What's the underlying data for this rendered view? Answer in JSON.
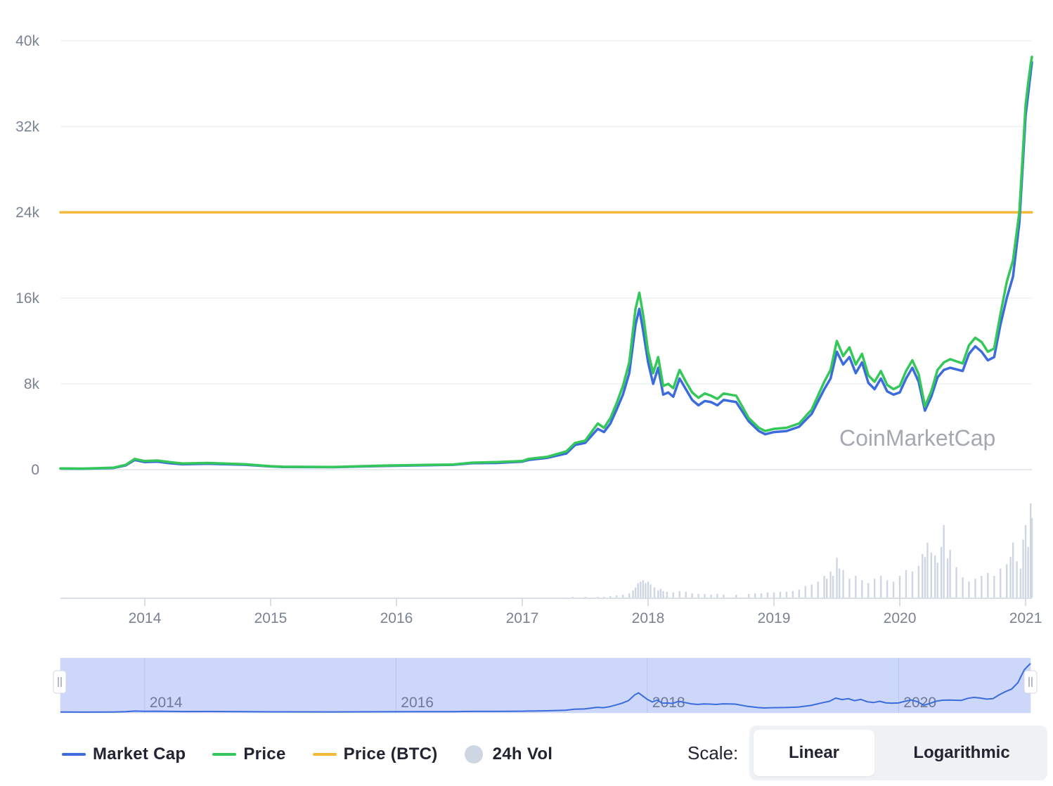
{
  "chart_data": {
    "type": "line",
    "y_axis": {
      "ticks": [
        "0",
        "8k",
        "16k",
        "24k",
        "32k",
        "40k"
      ],
      "tick_values": [
        0,
        8000,
        16000,
        24000,
        32000,
        40000
      ],
      "ylim": [
        0,
        40000
      ],
      "grid": true
    },
    "x_axis": {
      "ticks": [
        "2014",
        "2015",
        "2016",
        "2017",
        "2018",
        "2019",
        "2020",
        "2021"
      ],
      "xlim": [
        2013.33,
        2021.05
      ]
    },
    "series": [
      {
        "name": "Market Cap",
        "color": "#3b6bdc",
        "x": [
          2013.33,
          2013.5,
          2013.75,
          2013.85,
          2013.92,
          2014.0,
          2014.1,
          2014.2,
          2014.3,
          2014.5,
          2014.8,
          2015.0,
          2015.1,
          2015.5,
          2015.9,
          2016.2,
          2016.45,
          2016.6,
          2016.8,
          2017.0,
          2017.05,
          2017.2,
          2017.35,
          2017.42,
          2017.5,
          2017.6,
          2017.65,
          2017.7,
          2017.75,
          2017.8,
          2017.85,
          2017.9,
          2017.93,
          2017.96,
          2018.0,
          2018.04,
          2018.08,
          2018.12,
          2018.16,
          2018.2,
          2018.25,
          2018.3,
          2018.35,
          2018.4,
          2018.45,
          2018.5,
          2018.55,
          2018.6,
          2018.65,
          2018.7,
          2018.8,
          2018.88,
          2018.93,
          2019.0,
          2019.1,
          2019.2,
          2019.3,
          2019.4,
          2019.45,
          2019.5,
          2019.55,
          2019.6,
          2019.65,
          2019.7,
          2019.75,
          2019.8,
          2019.85,
          2019.9,
          2019.95,
          2020.0,
          2020.05,
          2020.1,
          2020.15,
          2020.2,
          2020.25,
          2020.3,
          2020.35,
          2020.4,
          2020.5,
          2020.55,
          2020.6,
          2020.65,
          2020.7,
          2020.75,
          2020.8,
          2020.85,
          2020.9,
          2020.95,
          2020.98,
          2021.0,
          2021.02,
          2021.04,
          2021.05
        ],
        "values": [
          100,
          80,
          150,
          400,
          900,
          700,
          750,
          600,
          500,
          550,
          450,
          300,
          250,
          230,
          350,
          400,
          450,
          600,
          620,
          750,
          900,
          1100,
          1500,
          2300,
          2500,
          3800,
          3500,
          4300,
          5600,
          7000,
          9000,
          13500,
          15000,
          13000,
          10000,
          8000,
          9500,
          7000,
          7200,
          6800,
          8500,
          7500,
          6500,
          6000,
          6400,
          6300,
          6000,
          6500,
          6400,
          6300,
          4500,
          3600,
          3300,
          3500,
          3600,
          4000,
          5200,
          7500,
          8500,
          11000,
          9800,
          10500,
          9000,
          10000,
          8100,
          7500,
          8500,
          7300,
          7000,
          7200,
          8500,
          9500,
          8200,
          5500,
          6800,
          8600,
          9300,
          9500,
          9200,
          10800,
          11500,
          11000,
          10200,
          10500,
          13500,
          16000,
          18000,
          23000,
          29000,
          33000,
          35000,
          37000,
          38000
        ]
      },
      {
        "name": "Price",
        "color": "#34c759",
        "x": [
          2013.33,
          2013.5,
          2013.75,
          2013.85,
          2013.92,
          2014.0,
          2014.1,
          2014.2,
          2014.3,
          2014.5,
          2014.8,
          2015.0,
          2015.1,
          2015.5,
          2015.9,
          2016.2,
          2016.45,
          2016.6,
          2016.8,
          2017.0,
          2017.05,
          2017.2,
          2017.35,
          2017.42,
          2017.5,
          2017.6,
          2017.65,
          2017.7,
          2017.75,
          2017.8,
          2017.85,
          2017.9,
          2017.93,
          2017.96,
          2018.0,
          2018.04,
          2018.08,
          2018.12,
          2018.16,
          2018.2,
          2018.25,
          2018.3,
          2018.35,
          2018.4,
          2018.45,
          2018.5,
          2018.55,
          2018.6,
          2018.65,
          2018.7,
          2018.8,
          2018.88,
          2018.93,
          2019.0,
          2019.1,
          2019.2,
          2019.3,
          2019.4,
          2019.45,
          2019.5,
          2019.55,
          2019.6,
          2019.65,
          2019.7,
          2019.75,
          2019.8,
          2019.85,
          2019.9,
          2019.95,
          2020.0,
          2020.05,
          2020.1,
          2020.15,
          2020.2,
          2020.25,
          2020.3,
          2020.35,
          2020.4,
          2020.5,
          2020.55,
          2020.6,
          2020.65,
          2020.7,
          2020.75,
          2020.8,
          2020.85,
          2020.9,
          2020.95,
          2020.98,
          2021.0,
          2021.02,
          2021.04,
          2021.05
        ],
        "values": [
          120,
          100,
          180,
          450,
          1000,
          800,
          850,
          700,
          580,
          620,
          500,
          320,
          270,
          250,
          380,
          430,
          470,
          650,
          700,
          800,
          1000,
          1200,
          1700,
          2500,
          2700,
          4300,
          3900,
          4800,
          6200,
          7800,
          10000,
          15000,
          16500,
          14500,
          11000,
          9000,
          10500,
          7800,
          8000,
          7600,
          9300,
          8200,
          7200,
          6700,
          7100,
          6900,
          6600,
          7100,
          7000,
          6900,
          4800,
          3900,
          3600,
          3800,
          3900,
          4300,
          5600,
          8200,
          9300,
          12000,
          10600,
          11400,
          9800,
          10800,
          8800,
          8200,
          9200,
          7900,
          7500,
          7800,
          9200,
          10200,
          8900,
          5900,
          7300,
          9300,
          10000,
          10300,
          9900,
          11600,
          12300,
          11900,
          11000,
          11300,
          14500,
          17500,
          19500,
          24000,
          30000,
          34000,
          36000,
          37800,
          38500
        ]
      },
      {
        "name": "Price (BTC)",
        "color": "#f5b93a",
        "x": [
          2013.33,
          2021.05
        ],
        "values": [
          24000,
          24000
        ]
      }
    ],
    "volume_series": {
      "name": "24h Vol",
      "color": "#cfd6e3",
      "bars": [
        [
          2017.4,
          1
        ],
        [
          2017.5,
          1
        ],
        [
          2017.6,
          1
        ],
        [
          2017.65,
          1
        ],
        [
          2017.7,
          2
        ],
        [
          2017.75,
          3
        ],
        [
          2017.8,
          4
        ],
        [
          2017.85,
          6
        ],
        [
          2017.88,
          10
        ],
        [
          2017.9,
          14
        ],
        [
          2017.92,
          20
        ],
        [
          2017.94,
          22
        ],
        [
          2017.96,
          24
        ],
        [
          2017.98,
          20
        ],
        [
          2018.0,
          22
        ],
        [
          2018.02,
          18
        ],
        [
          2018.05,
          14
        ],
        [
          2018.08,
          10
        ],
        [
          2018.1,
          12
        ],
        [
          2018.12,
          9
        ],
        [
          2018.15,
          8
        ],
        [
          2018.2,
          7
        ],
        [
          2018.25,
          9
        ],
        [
          2018.3,
          8
        ],
        [
          2018.35,
          6
        ],
        [
          2018.4,
          5
        ],
        [
          2018.45,
          5
        ],
        [
          2018.5,
          4
        ],
        [
          2018.55,
          5
        ],
        [
          2018.6,
          4
        ],
        [
          2018.7,
          4
        ],
        [
          2018.8,
          5
        ],
        [
          2018.85,
          6
        ],
        [
          2018.9,
          6
        ],
        [
          2018.95,
          7
        ],
        [
          2019.0,
          7
        ],
        [
          2019.05,
          8
        ],
        [
          2019.1,
          8
        ],
        [
          2019.15,
          9
        ],
        [
          2019.2,
          11
        ],
        [
          2019.25,
          16
        ],
        [
          2019.3,
          18
        ],
        [
          2019.35,
          22
        ],
        [
          2019.4,
          30
        ],
        [
          2019.42,
          26
        ],
        [
          2019.45,
          36
        ],
        [
          2019.47,
          30
        ],
        [
          2019.5,
          55
        ],
        [
          2019.52,
          40
        ],
        [
          2019.55,
          38
        ],
        [
          2019.6,
          26
        ],
        [
          2019.65,
          30
        ],
        [
          2019.7,
          24
        ],
        [
          2019.75,
          20
        ],
        [
          2019.8,
          26
        ],
        [
          2019.85,
          30
        ],
        [
          2019.9,
          24
        ],
        [
          2019.95,
          22
        ],
        [
          2020.0,
          30
        ],
        [
          2020.05,
          38
        ],
        [
          2020.1,
          36
        ],
        [
          2020.15,
          44
        ],
        [
          2020.18,
          60
        ],
        [
          2020.2,
          56
        ],
        [
          2020.22,
          76
        ],
        [
          2020.25,
          62
        ],
        [
          2020.28,
          58
        ],
        [
          2020.3,
          48
        ],
        [
          2020.33,
          70
        ],
        [
          2020.35,
          100
        ],
        [
          2020.38,
          54
        ],
        [
          2020.4,
          66
        ],
        [
          2020.45,
          42
        ],
        [
          2020.5,
          28
        ],
        [
          2020.55,
          22
        ],
        [
          2020.6,
          26
        ],
        [
          2020.65,
          30
        ],
        [
          2020.7,
          34
        ],
        [
          2020.75,
          30
        ],
        [
          2020.8,
          40
        ],
        [
          2020.85,
          46
        ],
        [
          2020.88,
          56
        ],
        [
          2020.9,
          76
        ],
        [
          2020.93,
          50
        ],
        [
          2020.96,
          40
        ],
        [
          2020.98,
          80
        ],
        [
          2021.0,
          100
        ],
        [
          2021.02,
          70
        ],
        [
          2021.04,
          130
        ],
        [
          2021.05,
          110
        ]
      ]
    },
    "navigator": {
      "labels": [
        "2014",
        "2016",
        "2018",
        "2020"
      ]
    },
    "annotations": {
      "watermark": "CoinMarketCap"
    }
  },
  "legend": {
    "items": [
      {
        "label": "Market Cap",
        "color": "#3b6bdc",
        "kind": "line"
      },
      {
        "label": "Price",
        "color": "#34c759",
        "kind": "line"
      },
      {
        "label": "Price (BTC)",
        "color": "#f5b93a",
        "kind": "line"
      },
      {
        "label": "24h Vol",
        "color": "#cfd6e3",
        "kind": "dot"
      }
    ]
  },
  "scale": {
    "label": "Scale:",
    "options": [
      "Linear",
      "Logarithmic"
    ],
    "selected": "Linear"
  }
}
